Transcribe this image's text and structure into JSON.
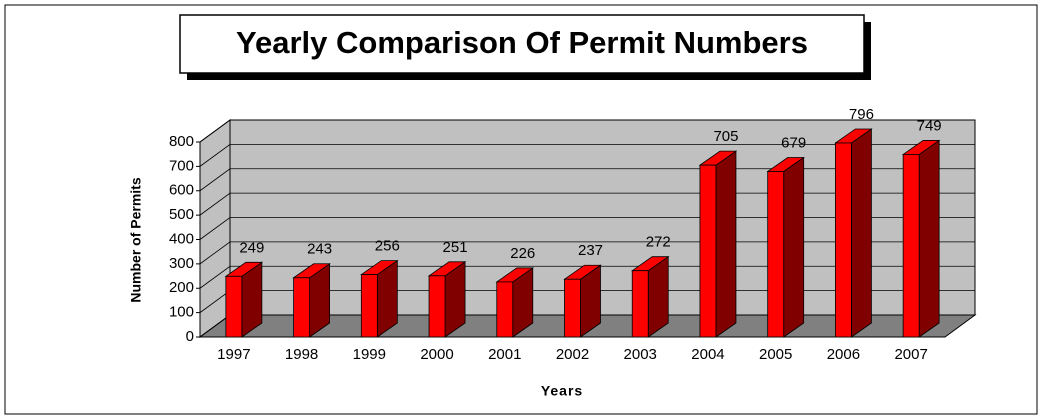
{
  "chart_data": {
    "type": "bar3d",
    "title": "Yearly Comparison Of Permit Numbers",
    "xlabel": "Years",
    "ylabel": "Number of Permits",
    "categories": [
      "1997",
      "1998",
      "1999",
      "2000",
      "2001",
      "2002",
      "2003",
      "2004",
      "2005",
      "2006",
      "2007"
    ],
    "values": [
      249,
      243,
      256,
      251,
      226,
      237,
      272,
      705,
      679,
      796,
      749
    ],
    "color": "#ff0000",
    "side_color": "#800000",
    "ylim": [
      0,
      800
    ],
    "yticks": [
      0,
      100,
      200,
      300,
      400,
      500,
      600,
      700,
      800
    ],
    "grid": true
  }
}
